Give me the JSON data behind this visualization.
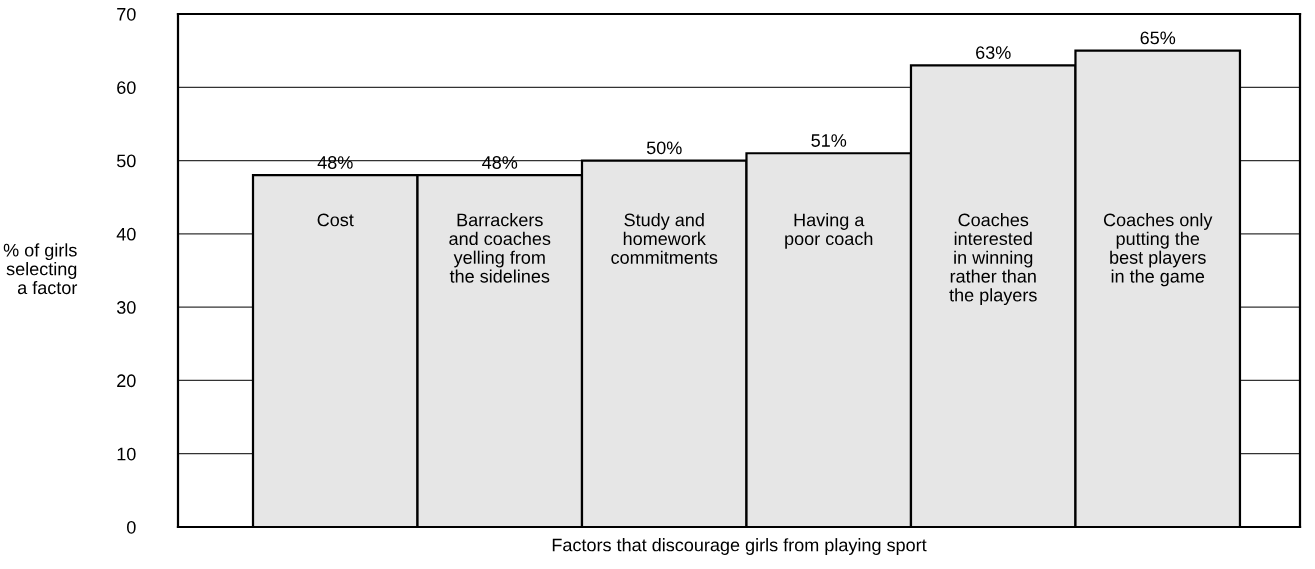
{
  "chart_data": {
    "type": "bar",
    "xlabel": "Factors that discourage girls from playing sport",
    "ylabel": "% of girls\nselecting\na factor",
    "categories": [
      "Cost",
      "Barrackers\nand coaches\nyelling from\nthe sidelines",
      "Study and\nhomework\ncommitments",
      "Having a\npoor coach",
      "Coaches\ninterested\nin winning\nrather than\nthe players",
      "Coaches only\nputting the\nbest players\nin the game"
    ],
    "values": [
      48,
      48,
      50,
      51,
      63,
      65
    ],
    "value_labels": [
      "48%",
      "48%",
      "50%",
      "51%",
      "63%",
      "65%"
    ],
    "color": "#e6e6e6",
    "ylim": [
      0,
      70
    ],
    "yticks": [
      0,
      10,
      20,
      30,
      40,
      50,
      60,
      70
    ],
    "grid": "y",
    "tick_labels": "y"
  }
}
